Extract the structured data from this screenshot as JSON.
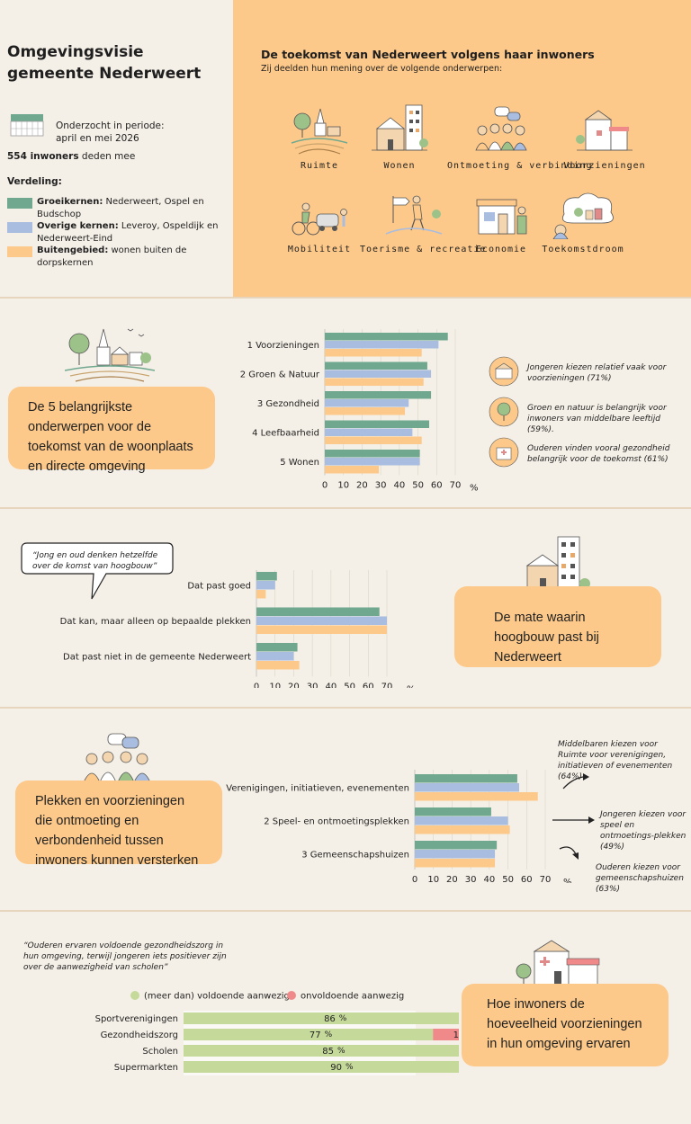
{
  "header": {
    "title_line1": "Omgevingsvisie",
    "title_line2": "gemeente Nederweert",
    "period_line1": "Onderzocht in periode:",
    "period_line2": "april en mei 2026",
    "respondents_count": "554 inwoners",
    "respondents_rest": " deden mee",
    "distribution_label": "Verdeling:",
    "legend": [
      {
        "name": "Groeikernen:",
        "desc": " Nederweert, Ospel en Budschop",
        "color": "#6fa88f"
      },
      {
        "name": "Overige kernen:",
        "desc": " Leveroy, Ospeldijk en Nederweert-Eind",
        "color": "#a8bde0"
      },
      {
        "name": "Buitengebied:",
        "desc": " wonen buiten de dorpskernen",
        "color": "#fdc98a"
      }
    ],
    "topics_title": "De toekomst van Nederweert volgens haar inwoners",
    "topics_subtitle": "Zij deelden hun mening over de volgende onderwerpen:",
    "topics": [
      {
        "label": "Ruimte",
        "icon": "landscape-icon"
      },
      {
        "label": "Wonen",
        "icon": "houses-icon"
      },
      {
        "label": "Ontmoeting & verbinding",
        "icon": "people-meeting-icon"
      },
      {
        "label": "Voorzieningen",
        "icon": "facilities-icon"
      },
      {
        "label": "Mobiliteit",
        "icon": "mobility-icon"
      },
      {
        "label": "Toerisme & recreatie",
        "icon": "hiker-icon"
      },
      {
        "label": "Economie",
        "icon": "shop-icon"
      },
      {
        "label": "Toekomstdroom",
        "icon": "dream-icon"
      }
    ]
  },
  "section1": {
    "callout": "De 5 belangrijkste onderwerpen voor de toekomst van de woonplaats en directe omgeving",
    "notes": [
      {
        "text": "Jongeren kiezen relatief vaak voor voorzieningen (71%)",
        "icon": "shop-icon"
      },
      {
        "text": "Groen en natuur is belangrijk voor inwoners van middelbare leeftijd (59%).",
        "icon": "tree-icon"
      },
      {
        "text": "Ouderen vinden vooral gezondheid belangrijk voor de toekomst (61%)",
        "icon": "hospital-icon"
      }
    ]
  },
  "section2": {
    "quote": "“Jong en oud denken hetzelfde over de komst van hoogbouw”",
    "callout": "De mate waarin hoogbouw past bij Nederweert"
  },
  "section3": {
    "callout": "Plekken en voorzieningen die ontmoeting en verbondenheid tussen inwoners kunnen versterken",
    "notes": [
      "Middelbaren kiezen voor Ruimte voor verenigingen, initiatieven of evenementen (64%)",
      "Jongeren kiezen voor speel en ontmoetings-plekken (49%)",
      "Ouderen kiezen voor gemeenschapshuizen (63%)"
    ]
  },
  "section4": {
    "quote": "“Ouderen ervaren voldoende gezondheidszorg in hun omgeving, terwijl jongeren iets positiever zijn over de aanwezigheid van scholen”",
    "callout": "Hoe inwoners de hoeveelheid voorzieningen in hun omgeving ervaren"
  },
  "colors": {
    "group1": "#6fa88f",
    "group2": "#a8bde0",
    "group3": "#fdc98a",
    "sufficient": "#c5d99a",
    "insufficient": "#f08a8a"
  },
  "chart_data": [
    {
      "type": "bar",
      "orientation": "horizontal",
      "categories": [
        "1 Voorzieningen",
        "2 Groen & Natuur",
        "3 Gezondheid",
        "4 Leefbaarheid",
        "5 Wonen"
      ],
      "series": [
        {
          "name": "Groeikernen",
          "values": [
            66,
            55,
            57,
            56,
            51
          ]
        },
        {
          "name": "Overige kernen",
          "values": [
            61,
            57,
            45,
            47,
            51
          ]
        },
        {
          "name": "Buitengebied",
          "values": [
            52,
            53,
            43,
            52,
            29
          ]
        }
      ],
      "xlim": [
        0,
        70
      ],
      "xticks": [
        0,
        10,
        20,
        30,
        40,
        50,
        60,
        70
      ],
      "unit": "%"
    },
    {
      "type": "bar",
      "orientation": "horizontal",
      "categories": [
        "Dat past goed",
        "Dat kan, maar alleen op bepaalde plekken",
        "Dat past niet in de gemeente Nederweert"
      ],
      "series": [
        {
          "name": "Groeikernen",
          "values": [
            11,
            66,
            22
          ]
        },
        {
          "name": "Overige kernen",
          "values": [
            10,
            70,
            20
          ]
        },
        {
          "name": "Buitengebied",
          "values": [
            5,
            70,
            23
          ]
        }
      ],
      "xlim": [
        0,
        70
      ],
      "xticks": [
        0,
        10,
        20,
        30,
        40,
        50,
        60,
        70
      ],
      "unit": "%"
    },
    {
      "type": "bar",
      "orientation": "horizontal",
      "categories": [
        "1 Verenigingen, initiatieven, evenementen",
        "2 Speel- en ontmoetingsplekken",
        "3 Gemeenschapshuizen"
      ],
      "series": [
        {
          "name": "Groeikernen",
          "values": [
            55,
            41,
            44
          ]
        },
        {
          "name": "Overige kernen",
          "values": [
            56,
            50,
            43
          ]
        },
        {
          "name": "Buitengebied",
          "values": [
            66,
            51,
            43
          ]
        }
      ],
      "xlim": [
        0,
        70
      ],
      "xticks": [
        0,
        10,
        20,
        30,
        40,
        50,
        60,
        70
      ],
      "unit": "%"
    },
    {
      "type": "bar",
      "orientation": "horizontal",
      "stacked": true,
      "categories": [
        "Sportverenigingen",
        "Gezondheidszorg",
        "Scholen",
        "Supermarkten"
      ],
      "series": [
        {
          "name": "(meer dan) voldoende aanwezig",
          "values": [
            86,
            77,
            85,
            90
          ]
        },
        {
          "name": "onvoldoende aanwezig",
          "values": [
            5,
            16,
            4,
            9
          ]
        }
      ],
      "unit": "%"
    }
  ]
}
